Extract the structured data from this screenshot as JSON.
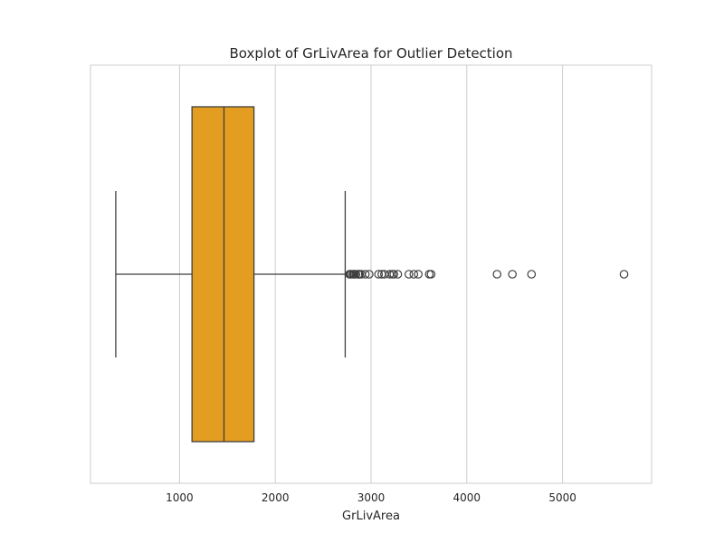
{
  "chart_data": {
    "type": "boxplot",
    "title": "Boxplot of GrLivArea for Outlier Detection",
    "xlabel": "GrLivArea",
    "ylabel": "",
    "xlim": [
      70,
      5930
    ],
    "xticks": [
      1000,
      2000,
      3000,
      4000,
      5000
    ],
    "grid": true,
    "orientation": "horizontal",
    "box_color": "#e39e21",
    "line_color": "#3f3f3f",
    "grid_color": "#cccccc",
    "spine_color": "#cccccc",
    "stats": {
      "whisker_low": 334,
      "q1": 1130,
      "median": 1464,
      "q3": 1777,
      "whisker_high": 2730
    },
    "outliers": [
      2775,
      2784,
      2792,
      2810,
      2822,
      2828,
      2842,
      2868,
      2872,
      2880,
      2898,
      2940,
      2980,
      3078,
      3112,
      3140,
      3194,
      3222,
      3238,
      3279,
      3395,
      3447,
      3493,
      3608,
      3627,
      4316,
      4476,
      4676,
      5642
    ]
  }
}
